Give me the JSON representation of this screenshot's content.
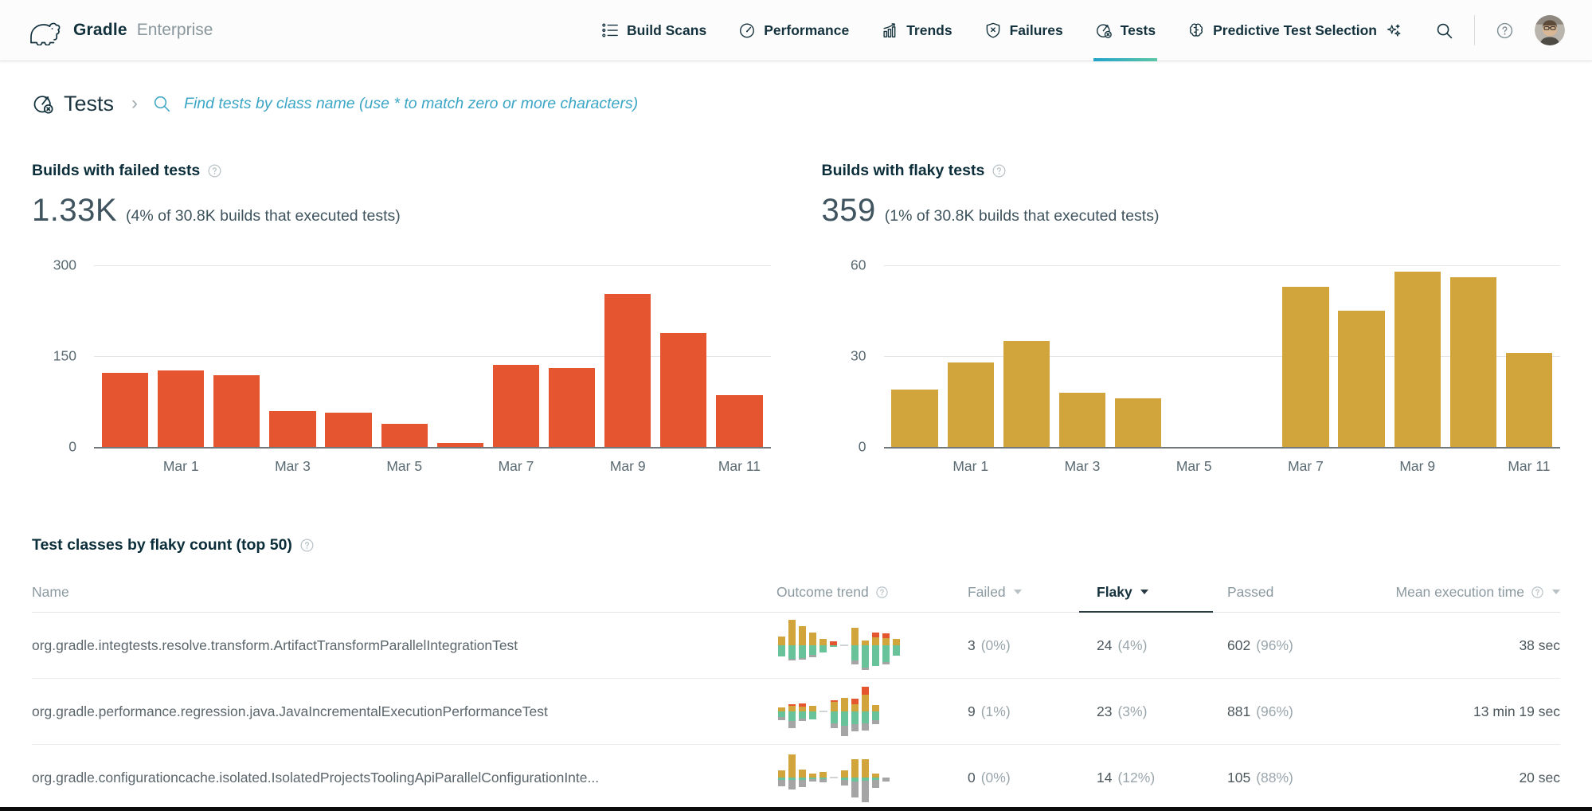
{
  "brand": {
    "logo_icon": "gradle-elephant-logo",
    "name": "Gradle",
    "suffix": "Enterprise"
  },
  "nav": {
    "items": [
      {
        "id": "build-scans",
        "label": "Build Scans",
        "icon": "list-icon",
        "active": false
      },
      {
        "id": "performance",
        "label": "Performance",
        "icon": "gauge-icon",
        "active": false
      },
      {
        "id": "trends",
        "label": "Trends",
        "icon": "trend-chart-icon",
        "active": false
      },
      {
        "id": "failures",
        "label": "Failures",
        "icon": "shield-x-icon",
        "active": false
      },
      {
        "id": "tests",
        "label": "Tests",
        "icon": "test-target-icon",
        "active": true
      },
      {
        "id": "predictive-test-selection",
        "label": "Predictive Test Selection",
        "icon": "brain-icon",
        "trailing_icon": "sparkles-icon",
        "active": false
      }
    ],
    "tools": [
      {
        "icon": "search-icon"
      },
      {
        "icon": "help-icon"
      },
      {
        "icon": "user-avatar"
      }
    ],
    "active_underline_colors": [
      "#23a3cb",
      "#5cc5a5"
    ]
  },
  "page_header": {
    "icon": "test-target-icon",
    "title": "Tests",
    "separator": "›",
    "search_placeholder": "Find tests by class name (use * to match zero or more characters)"
  },
  "chart_data": [
    {
      "type": "bar",
      "title": "Builds with failed tests",
      "headline_value": "1.33K",
      "headline_caption": "(4% of 30.8K builds that executed tests)",
      "bar_color": "#e45530",
      "ylim": [
        0,
        300
      ],
      "yticks": [
        300,
        150,
        0
      ],
      "x_tick_labels": [
        "Mar 1",
        "Mar 3",
        "Mar 5",
        "Mar 7",
        "Mar 9",
        "Mar 11"
      ],
      "tick_positions": [
        1,
        3,
        5,
        7,
        9,
        11
      ],
      "values": [
        122,
        126,
        118,
        59,
        56,
        38,
        6,
        136,
        130,
        253,
        188,
        85
      ],
      "grid": true,
      "legend": false
    },
    {
      "type": "bar",
      "title": "Builds with flaky tests",
      "headline_value": "359",
      "headline_caption": "(1% of 30.8K builds that executed tests)",
      "bar_color": "#d2a43c",
      "ylim": [
        0,
        60
      ],
      "yticks": [
        60,
        30,
        0
      ],
      "x_tick_labels": [
        "Mar 1",
        "Mar 3",
        "Mar 5",
        "Mar 7",
        "Mar 9",
        "Mar 11"
      ],
      "tick_positions": [
        1,
        3,
        5,
        7,
        9,
        11
      ],
      "values": [
        19,
        28,
        35,
        18,
        16,
        0,
        0,
        53,
        45,
        58,
        56,
        31
      ],
      "grid": true,
      "legend": false
    }
  ],
  "table": {
    "title": "Test classes by flaky count (top 50)",
    "columns": [
      {
        "label": "Name"
      },
      {
        "label": "Outcome trend",
        "help": true
      },
      {
        "label": "Failed",
        "sort": "inactive"
      },
      {
        "label": "Flaky",
        "sort": "active"
      },
      {
        "label": "Passed"
      },
      {
        "label": "Mean execution time",
        "help": true,
        "sort": "inactive",
        "align": "right"
      }
    ],
    "trend_colors": {
      "failed": "#e45530",
      "flaky": "#d2a43c",
      "passed": "#68c39b",
      "other": "#a5a5a5"
    },
    "rows": [
      {
        "name": "org.gradle.integtests.resolve.transform.ArtifactTransformParallelIntegrationTest",
        "failed": "3",
        "failed_pct": "(0%)",
        "flaky": "24",
        "flaky_pct": "(4%)",
        "passed": "602",
        "passed_pct": "(96%)",
        "mean_execution_time": "38 sec",
        "trend": [
          [
            0,
            11,
            14,
            0
          ],
          [
            0,
            32,
            17,
            2
          ],
          [
            0,
            24,
            16,
            2
          ],
          [
            0,
            16,
            12,
            3
          ],
          [
            0,
            8,
            9,
            0
          ],
          [
            5,
            0,
            2,
            0
          ],
          null,
          [
            0,
            22,
            19,
            5
          ],
          [
            0,
            6,
            28,
            3
          ],
          [
            6,
            10,
            26,
            0
          ],
          [
            6,
            9,
            21,
            3
          ],
          [
            0,
            8,
            13,
            0
          ]
        ]
      },
      {
        "name": "org.gradle.performance.regression.java.JavaIncrementalExecutionPerformanceTest",
        "failed": "9",
        "failed_pct": "(1%)",
        "flaky": "23",
        "flaky_pct": "(3%)",
        "passed": "881",
        "passed_pct": "(96%)",
        "mean_execution_time": "13 min 19 sec",
        "trend": [
          [
            0,
            5,
            7,
            4
          ],
          [
            2,
            7,
            12,
            9
          ],
          [
            4,
            6,
            9,
            3
          ],
          [
            0,
            7,
            10,
            0
          ],
          null,
          [
            2,
            12,
            15,
            6
          ],
          [
            0,
            17,
            18,
            13
          ],
          [
            7,
            9,
            16,
            9
          ],
          [
            10,
            21,
            15,
            9
          ],
          [
            0,
            8,
            11,
            5
          ]
        ]
      },
      {
        "name": "org.gradle.configurationcache.isolated.IsolatedProjectsToolingApiParallelConfigurationInte...",
        "failed": "0",
        "failed_pct": "(0%)",
        "flaky": "14",
        "flaky_pct": "(12%)",
        "passed": "105",
        "passed_pct": "(88%)",
        "mean_execution_time": "20 sec",
        "trend": [
          [
            0,
            9,
            3,
            8
          ],
          [
            0,
            29,
            3,
            12
          ],
          [
            0,
            10,
            3,
            9
          ],
          [
            0,
            5,
            2,
            3
          ],
          [
            0,
            7,
            2,
            4
          ],
          null,
          [
            0,
            9,
            3,
            7
          ],
          [
            0,
            23,
            5,
            20
          ],
          [
            0,
            23,
            4,
            27
          ],
          [
            0,
            5,
            3,
            10
          ],
          [
            0,
            0,
            0,
            5
          ]
        ]
      }
    ]
  }
}
